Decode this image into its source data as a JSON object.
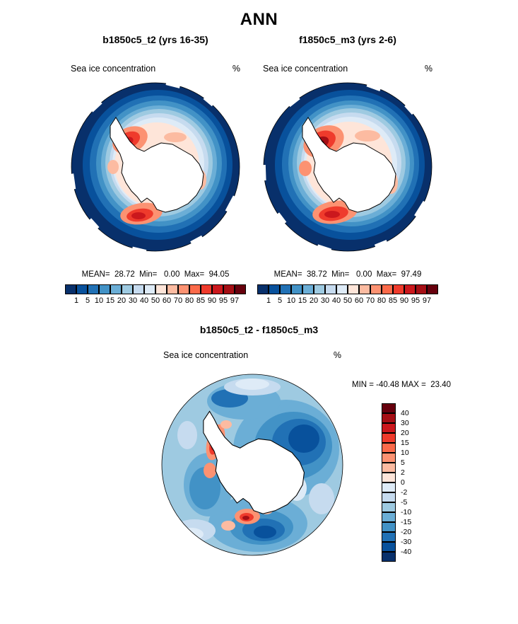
{
  "title": "ANN",
  "panels": [
    {
      "title": "b1850c5_t2 (yrs 16-35)",
      "field_label": "Sea ice concentration",
      "units": "%",
      "stats_line": "MEAN=  28.72  Min=   0.00  Max=  94.05"
    },
    {
      "title": "f1850c5_m3 (yrs 2-6)",
      "field_label": "Sea ice concentration",
      "units": "%",
      "stats_line": "MEAN=  38.72  Min=   0.00  Max=  97.49"
    }
  ],
  "diff": {
    "title": "b1850c5_t2 - f1850c5_m3",
    "field_label": "Sea ice concentration",
    "units": "%",
    "minmax_line": "MIN = -40.48 MAX =  23.40"
  },
  "conc_colorbar": {
    "ticks": [
      "1",
      "5",
      "10",
      "15",
      "20",
      "30",
      "40",
      "50",
      "60",
      "70",
      "80",
      "85",
      "90",
      "95",
      "97"
    ],
    "colors": [
      "#08306b",
      "#08519c",
      "#2171b5",
      "#4292c6",
      "#6baed6",
      "#9ecae1",
      "#c6dbef",
      "#deebf7",
      "#fee5d9",
      "#fcbba1",
      "#fc9272",
      "#fb6a4a",
      "#ef3b2c",
      "#cb181d",
      "#a50f15",
      "#67000d"
    ]
  },
  "diff_colorbar": {
    "ticks": [
      "40",
      "30",
      "20",
      "15",
      "10",
      "5",
      "2",
      "0",
      "-2",
      "-5",
      "-10",
      "-15",
      "-20",
      "-30",
      "-40"
    ],
    "colors": [
      "#67000d",
      "#a50f15",
      "#cb181d",
      "#ef3b2c",
      "#fb6a4a",
      "#fc9272",
      "#fcbba1",
      "#fee5d9",
      "#deebf7",
      "#c6dbef",
      "#9ecae1",
      "#6baed6",
      "#4292c6",
      "#2171b5",
      "#08519c",
      "#08306b"
    ]
  },
  "chart_data": [
    {
      "type": "heatmap",
      "subtype": "south-polar-stereographic-map",
      "region": "Antarctica / Southern Ocean",
      "season": "ANN",
      "title": "b1850c5_t2 (yrs 16-35)",
      "variable": "Sea ice concentration",
      "units": "%",
      "contour_levels": [
        1,
        5,
        10,
        15,
        20,
        30,
        40,
        50,
        60,
        70,
        80,
        85,
        90,
        95,
        97
      ],
      "stats": {
        "mean": 28.72,
        "min": 0.0,
        "max": 94.05
      },
      "palette": [
        "#08306b",
        "#08519c",
        "#2171b5",
        "#4292c6",
        "#6baed6",
        "#9ecae1",
        "#c6dbef",
        "#deebf7",
        "#fee5d9",
        "#fcbba1",
        "#fc9272",
        "#fb6a4a",
        "#ef3b2c",
        "#cb181d",
        "#a50f15",
        "#67000d"
      ],
      "legend_position": "bottom"
    },
    {
      "type": "heatmap",
      "subtype": "south-polar-stereographic-map",
      "region": "Antarctica / Southern Ocean",
      "season": "ANN",
      "title": "f1850c5_m3 (yrs 2-6)",
      "variable": "Sea ice concentration",
      "units": "%",
      "contour_levels": [
        1,
        5,
        10,
        15,
        20,
        30,
        40,
        50,
        60,
        70,
        80,
        85,
        90,
        95,
        97
      ],
      "stats": {
        "mean": 38.72,
        "min": 0.0,
        "max": 97.49
      },
      "palette": [
        "#08306b",
        "#08519c",
        "#2171b5",
        "#4292c6",
        "#6baed6",
        "#9ecae1",
        "#c6dbef",
        "#deebf7",
        "#fee5d9",
        "#fcbba1",
        "#fc9272",
        "#fb6a4a",
        "#ef3b2c",
        "#cb181d",
        "#a50f15",
        "#67000d"
      ],
      "legend_position": "bottom"
    },
    {
      "type": "heatmap",
      "subtype": "south-polar-stereographic-map",
      "region": "Antarctica / Southern Ocean",
      "season": "ANN",
      "title": "b1850c5_t2 - f1850c5_m3",
      "variable": "Sea ice concentration difference",
      "units": "%",
      "contour_levels": [
        -40,
        -30,
        -20,
        -15,
        -10,
        -5,
        -2,
        0,
        2,
        5,
        10,
        15,
        20,
        30,
        40
      ],
      "stats": {
        "min": -40.48,
        "max": 23.4
      },
      "palette": [
        "#67000d",
        "#a50f15",
        "#cb181d",
        "#ef3b2c",
        "#fb6a4a",
        "#fc9272",
        "#fcbba1",
        "#fee5d9",
        "#deebf7",
        "#c6dbef",
        "#9ecae1",
        "#6baed6",
        "#4292c6",
        "#2171b5",
        "#08519c",
        "#08306b"
      ],
      "legend_position": "right"
    }
  ]
}
